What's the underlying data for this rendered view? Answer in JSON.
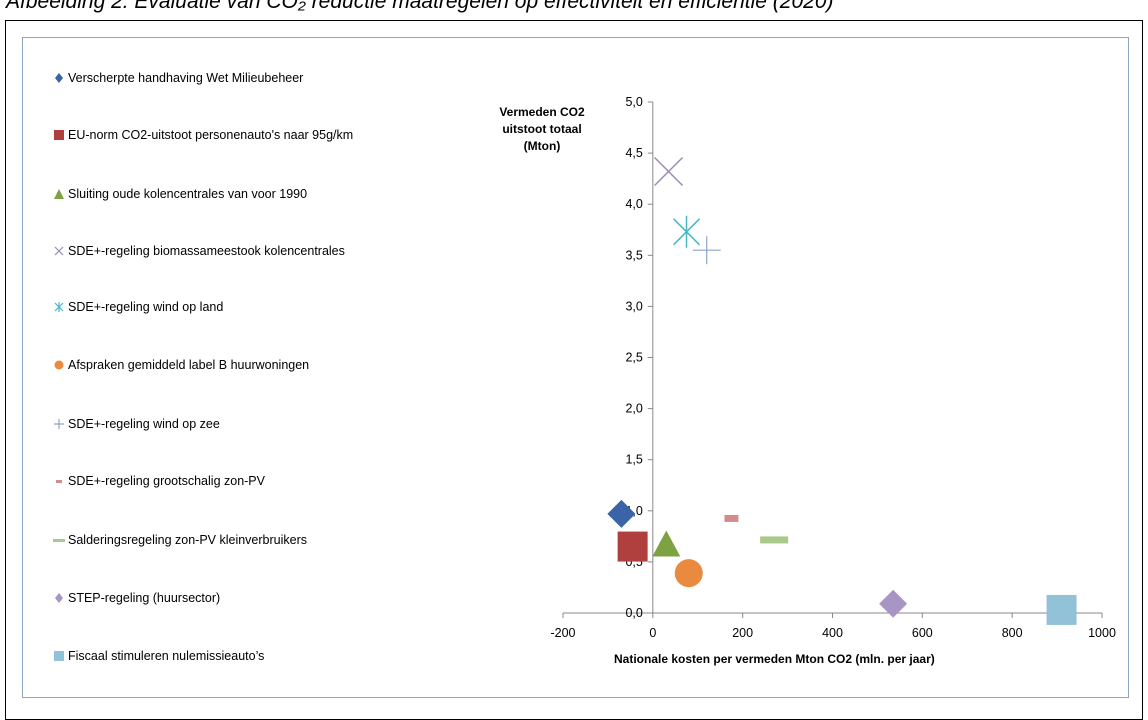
{
  "caption": "Afbeelding 2. Evaluatie van CO₂ reductie maatregelen op effectiviteit en efficientie (2020)",
  "chart_data": {
    "type": "scatter",
    "title": "",
    "xlabel": "Nationale kosten per vermeden Mton CO2 (mln. per jaar)",
    "ylabel": "Vermeden CO2 uitstoot totaal (Mton)",
    "ylabel_lines": [
      "Vermeden CO2",
      "uitstoot totaal",
      "(Mton)"
    ],
    "xlim": [
      -200,
      1000
    ],
    "ylim": [
      0,
      5
    ],
    "x_ticks": [
      -200,
      0,
      200,
      400,
      600,
      800,
      1000
    ],
    "y_ticks": [
      0,
      0.5,
      1.0,
      1.5,
      2.0,
      2.5,
      3.0,
      3.5,
      4.0,
      4.5,
      5.0
    ],
    "x_tick_labels": [
      "-200",
      "0",
      "200",
      "400",
      "600",
      "800",
      "1000"
    ],
    "y_tick_labels": [
      "0,0",
      "0,5",
      "1,0",
      "1,5",
      "2,0",
      "2,5",
      "3,0",
      "3,5",
      "4,0",
      "4,5",
      "5,0"
    ],
    "grid": false,
    "legend_position": "left",
    "series": [
      {
        "name": "Verscherpte handhaving  Wet Milieubeheer",
        "marker": "diamond-icon",
        "color": "#3b64a8",
        "x": -70,
        "y": 0.97
      },
      {
        "name": "EU-norm CO2-uitstoot personenauto's naar 95g/km",
        "marker": "square-icon",
        "color": "#b0403d",
        "x": -45,
        "y": 0.65
      },
      {
        "name": "Sluiting oude kolencentrales  van voor 1990",
        "marker": "triangle-icon",
        "color": "#7da241",
        "x": 30,
        "y": 0.67
      },
      {
        "name": "SDE+-regeling biomassameestook kolencentrales",
        "marker": "x-icon",
        "color": "#9b8ab5",
        "x": 35,
        "y": 4.32
      },
      {
        "name": "SDE+-regeling wind op land",
        "marker": "asterisk-icon",
        "color": "#4ab6c4",
        "x": 75,
        "y": 3.73
      },
      {
        "name": "Afspraken gemiddeld label B huurwoningen",
        "marker": "circle-icon",
        "color": "#e98a3e",
        "x": 80,
        "y": 0.39
      },
      {
        "name": "SDE+-regeling wind op zee",
        "marker": "plus-icon",
        "color": "#8ea5c9",
        "x": 120,
        "y": 3.55
      },
      {
        "name": "SDE+-regeling grootschalig zon-PV",
        "marker": "dash-icon",
        "color": "#d48b8b",
        "x": 175,
        "y": 0.93
      },
      {
        "name": "Salderingsregeling zon-PV kleinverbruikers",
        "marker": "dash-icon",
        "color": "#a8c98a",
        "x": 270,
        "y": 0.72
      },
      {
        "name": "STEP-regeling (huursector)",
        "marker": "diamond-icon",
        "color": "#a796c4",
        "x": 535,
        "y": 0.09
      },
      {
        "name": "Fiscaal stimuleren nulemissieauto’s",
        "marker": "square-icon",
        "color": "#92c2d8",
        "x": 910,
        "y": 0.03
      }
    ]
  }
}
